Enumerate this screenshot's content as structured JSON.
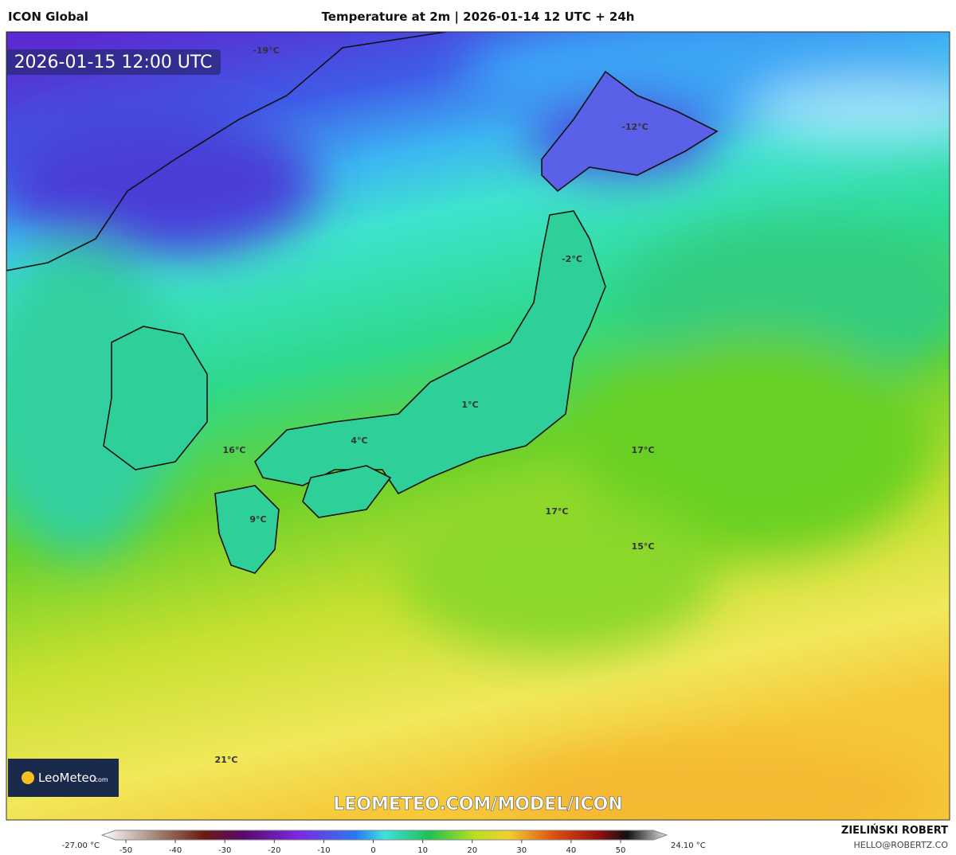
{
  "header": {
    "model": "ICON Global",
    "title": "Temperature at 2m | 2026-01-14 12 UTC + 24h"
  },
  "timestamp": "2026-01-15 12:00 UTC",
  "map_labels": [
    "-19°C",
    "-12°C",
    "-2°C",
    "1°C",
    "4°C",
    "16°C",
    "17°C",
    "17°C",
    "9°C",
    "15°C",
    "21°C"
  ],
  "logo": {
    "name": "LeoMeteo",
    "suffix": ".com"
  },
  "watermark": "LEOMETEO.COM/MODEL/ICON",
  "colorbar": {
    "min_label": "-27.00 °C",
    "max_label": "24.10 °C",
    "ticks": [
      -50,
      -40,
      -30,
      -20,
      -10,
      0,
      10,
      20,
      30,
      40,
      50
    ]
  },
  "footer": {
    "author": "ZIELIŃSKI ROBERT",
    "email": "HELLO@ROBERTZ.CO"
  }
}
